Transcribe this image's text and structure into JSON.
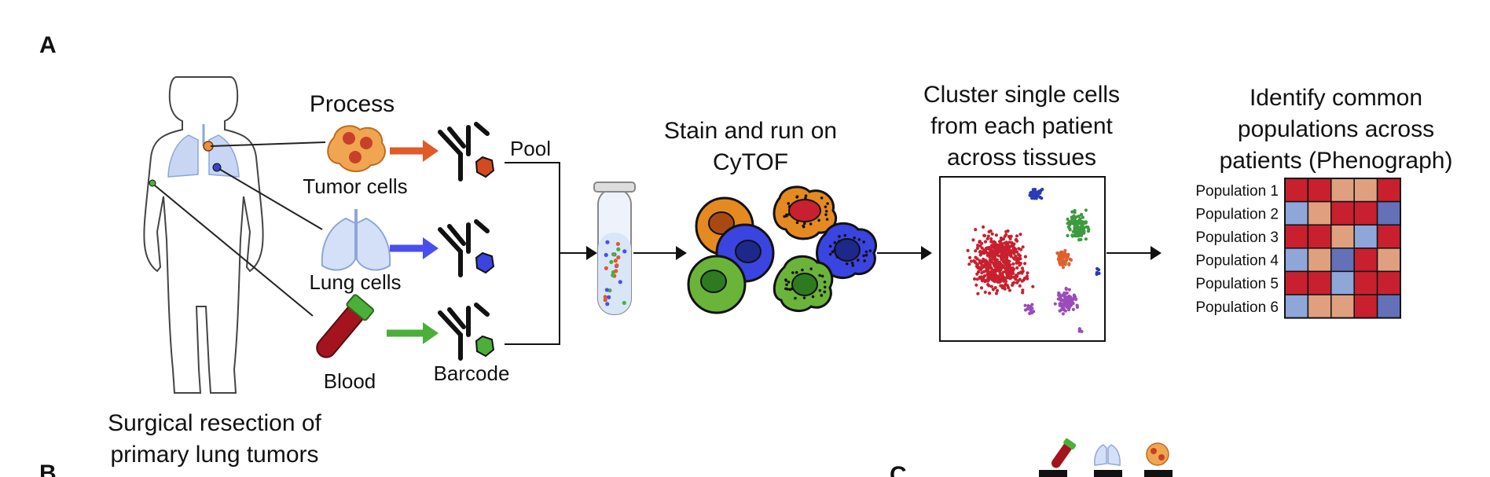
{
  "panels": {
    "a": "A",
    "b": "B",
    "c": "C"
  },
  "patient": {
    "caption_line1": "Surgical resection of",
    "caption_line2": "primary lung tumors"
  },
  "process": {
    "title": "Process",
    "tumor_label": "Tumor cells",
    "lung_label": "Lung cells",
    "blood_label": "Blood",
    "barcode_label": "Barcode",
    "pool_label": "Pool"
  },
  "stain": {
    "line1": "Stain and run on",
    "line2": "CyTOF"
  },
  "cluster": {
    "line1": "Cluster single cells",
    "line2": "from each patient",
    "line3": "across tissues"
  },
  "identify": {
    "line1": "Identify common",
    "line2": "populations across",
    "line3": "patients (Phenograph)"
  },
  "heatmap": {
    "rows": [
      "Population 1",
      "Population 2",
      "Population 3",
      "Population 4",
      "Population 5",
      "Population 6"
    ],
    "colors": {
      "R": "#c8202e",
      "P": "#e0a080",
      "B": "#8ea6d8",
      "D": "#6470b8"
    },
    "grid": [
      [
        "R",
        "R",
        "P",
        "P",
        "R"
      ],
      [
        "B",
        "P",
        "R",
        "R",
        "D"
      ],
      [
        "R",
        "R",
        "P",
        "B",
        "R"
      ],
      [
        "B",
        "P",
        "D",
        "R",
        "P"
      ],
      [
        "R",
        "R",
        "B",
        "R",
        "R"
      ],
      [
        "B",
        "P",
        "P",
        "R",
        "D"
      ]
    ]
  },
  "colors": {
    "tumor": "#e8923a",
    "lung": "#b9c9ee",
    "blood": "#a3141e",
    "arrow_tumor": "#e05a2a",
    "arrow_lung": "#4a4ef0",
    "arrow_blood": "#4caf3a",
    "cluster_red": "#c8202e",
    "cluster_green": "#3e9a3e",
    "cluster_blue": "#2a3ab8",
    "cluster_orange": "#e06030",
    "cluster_purple": "#9a4cb8"
  }
}
